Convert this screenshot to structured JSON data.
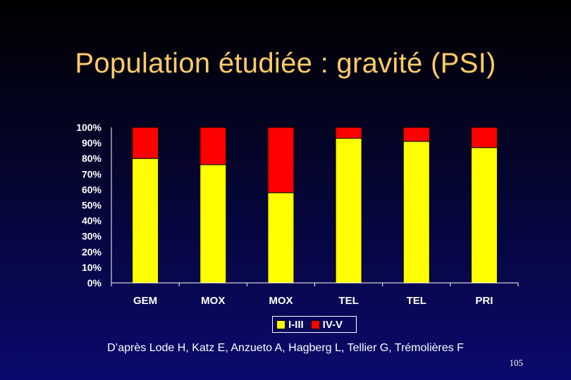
{
  "slide": {
    "title": "Population étudiée : gravité (PSI)",
    "citation": "D’après Lode H, Katz E, Anzueto A, Hagberg L, Tellier G, Trémolières F",
    "page_number": "105"
  },
  "colors": {
    "i_iii": "#ffff00",
    "iv_v": "#ff0000",
    "axis": "#ffffff",
    "tick_text": "#ffffff",
    "title": "#ffcc66"
  },
  "chart_data": {
    "type": "bar",
    "stacked": true,
    "categories": [
      "GEM",
      "MOX",
      "MOX",
      "TEL",
      "TEL",
      "PRI"
    ],
    "series": [
      {
        "name": "I-III",
        "values": [
          80,
          76,
          58,
          93,
          91,
          87
        ]
      },
      {
        "name": "IV-V",
        "values": [
          20,
          24,
          42,
          7,
          9,
          13
        ]
      }
    ],
    "ylim": [
      0,
      100
    ],
    "yticks": [
      "0%",
      "10%",
      "20%",
      "30%",
      "40%",
      "50%",
      "60%",
      "70%",
      "80%",
      "90%",
      "100%"
    ],
    "grid": false,
    "legend_position": "bottom"
  }
}
